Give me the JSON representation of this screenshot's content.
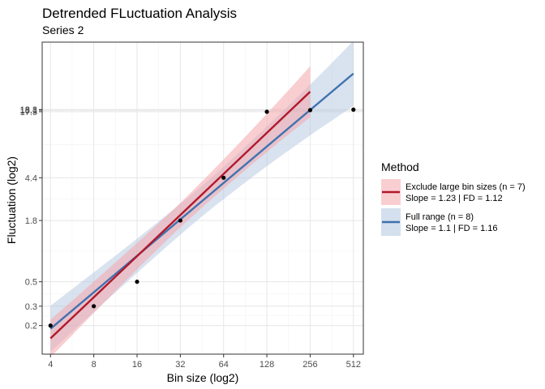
{
  "chart_data": {
    "type": "line",
    "title": "Detrended FLuctuation Analysis",
    "subtitle": "Series 2",
    "xlabel": "Bin size (log2)",
    "ylabel": "Fluctuation (log2)",
    "scale": {
      "x": "log2",
      "y": "log2"
    },
    "grid": true,
    "xlim": [
      3.5,
      600
    ],
    "ylim": [
      0.11,
      75
    ],
    "x_ticks": [
      {
        "value": 4,
        "label": "4"
      },
      {
        "value": 8,
        "label": "8"
      },
      {
        "value": 16,
        "label": "16"
      },
      {
        "value": 32,
        "label": "32"
      },
      {
        "value": 64,
        "label": "64"
      },
      {
        "value": 128,
        "label": "128"
      },
      {
        "value": 256,
        "label": "256"
      },
      {
        "value": 512,
        "label": "512"
      }
    ],
    "y_ticks": [
      {
        "value": 0.2,
        "label": "0.2"
      },
      {
        "value": 0.3,
        "label": "0.3"
      },
      {
        "value": 0.5,
        "label": "0.5"
      },
      {
        "value": 1.8,
        "label": "1.8"
      },
      {
        "value": 4.4,
        "label": "4.4"
      },
      {
        "value": 17.5,
        "label": "17.5"
      },
      {
        "value": 18.1,
        "label": "18.1"
      },
      {
        "value": 18.3,
        "label": "18.3"
      }
    ],
    "points": {
      "x": [
        4,
        8,
        16,
        32,
        64,
        128,
        256,
        512
      ],
      "y": [
        0.2,
        0.3,
        0.5,
        1.8,
        4.4,
        17.5,
        18.1,
        18.3
      ]
    },
    "legend": {
      "title": "Method",
      "position": "right"
    },
    "series": [
      {
        "name": "Exclude large bin sizes (n = 7)",
        "stats": "Slope = 1.23 | FD = 1.12",
        "color": "#b2182b",
        "fill": "#f4a6ab",
        "x_range": [
          4,
          256
        ],
        "line": [
          0.153,
          26.6
        ],
        "ci_lower": [
          0.103,
          15.6
        ],
        "ci_upper": [
          0.226,
          45.3
        ]
      },
      {
        "name": "Full range (n = 8)",
        "stats": "Slope = 1.1 | FD = 1.16",
        "color": "#3f72af",
        "fill": "#b3c6e0",
        "x_range": [
          4,
          512
        ],
        "line": [
          0.187,
          38.9
        ],
        "ci_lower": [
          0.116,
          19.7
        ],
        "ci_upper": [
          0.303,
          77.0
        ]
      }
    ]
  }
}
